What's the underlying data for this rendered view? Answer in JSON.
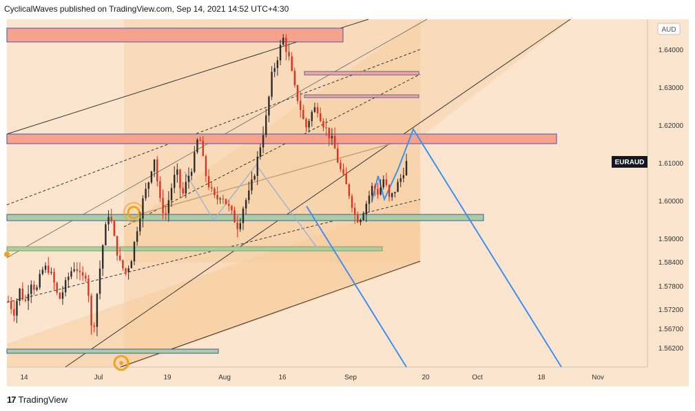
{
  "header": {
    "text": "CyclicalWaves published on TradingView.com, Sep 14, 2021 14:52 UTC+4:30"
  },
  "footer": {
    "logo_mark": "17",
    "brand": "TradingView"
  },
  "colors": {
    "background": "#fbe5cf",
    "channel_fill": "#f6c995",
    "red_zone": "#f7a28c",
    "green_zone": "#a9cf9d",
    "blue_projection": "#3d8ff0",
    "candle_red": "#e0301e",
    "orange_marker": "#f3a21e"
  },
  "chart_data": {
    "type": "candlestick",
    "symbol": "EURAUD",
    "currency": "AUD",
    "last_price_label": "EURAUD",
    "y_ticks": [
      "1.64000",
      "1.63000",
      "1.62000",
      "1.61000",
      "1.60000",
      "1.59000",
      "1.58400",
      "1.57800",
      "1.57200",
      "1.56700",
      "1.56200"
    ],
    "x_ticks": [
      "14",
      "Jul",
      "19",
      "Aug",
      "16",
      "Sep",
      "20",
      "Oct",
      "18",
      "Nov"
    ],
    "price_path": [
      1.5735,
      1.5705,
      1.5765,
      1.573,
      1.579,
      1.576,
      1.5815,
      1.5825,
      1.579,
      1.5735,
      1.577,
      1.581,
      1.583,
      1.579,
      1.581,
      1.563,
      1.578,
      1.59,
      1.5975,
      1.589,
      1.583,
      1.581,
      1.585,
      1.593,
      1.6,
      1.605,
      1.612,
      1.6,
      1.596,
      1.603,
      1.608,
      1.601,
      1.606,
      1.61,
      1.618,
      1.608,
      1.603,
      1.6,
      1.602,
      1.599,
      1.596,
      1.593,
      1.599,
      1.602,
      1.608,
      1.615,
      1.622,
      1.633,
      1.638,
      1.643,
      1.638,
      1.63,
      1.625,
      1.619,
      1.623,
      1.625,
      1.621,
      1.618,
      1.615,
      1.609,
      1.605,
      1.601,
      1.595,
      1.596,
      1.6,
      1.604,
      1.602,
      1.606,
      1.6,
      1.603,
      1.606,
      1.61
    ],
    "zones": [
      {
        "kind": "supply",
        "from": 1.6445,
        "to": 1.641
      },
      {
        "kind": "supply",
        "from": 1.6345,
        "to": 1.6335
      },
      {
        "kind": "supply",
        "from": 1.6277,
        "to": 1.6268
      },
      {
        "kind": "supply",
        "from": 1.6178,
        "to": 1.6152
      },
      {
        "kind": "demand",
        "from": 1.5966,
        "to": 1.595
      },
      {
        "kind": "demand",
        "from": 1.5875,
        "to": 1.5862
      },
      {
        "kind": "demand",
        "from": 1.5619,
        "to": 1.561
      }
    ],
    "projection": [
      1.5995,
      1.6075,
      1.603,
      1.609,
      1.619,
      1.553
    ],
    "grid": false
  }
}
